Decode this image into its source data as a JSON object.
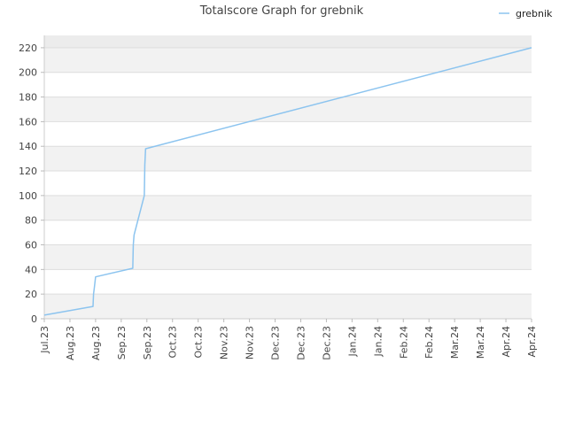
{
  "chart_data": {
    "type": "line",
    "title": "Totalscore Graph for grebnik",
    "xlabel": "",
    "ylabel": "",
    "ylim": [
      0,
      230
    ],
    "yticks": [
      0,
      20,
      40,
      60,
      80,
      100,
      120,
      140,
      160,
      180,
      200,
      220
    ],
    "xticks": [
      "Jul.23",
      "Aug.23",
      "Aug.23",
      "Sep.23",
      "Sep.23",
      "Oct.23",
      "Oct.23",
      "Nov.23",
      "Nov.23",
      "Dec.23",
      "Dec.23",
      "Dec.23",
      "Jan.24",
      "Jan.24",
      "Feb.24",
      "Feb.24",
      "Mar.24",
      "Mar.24",
      "Apr.24",
      "Apr.24"
    ],
    "xlim": [
      0,
      19
    ],
    "grid": true,
    "legend": {
      "position": "top-right"
    },
    "series": [
      {
        "name": "grebnik",
        "color": "#8cc4ef",
        "points": [
          {
            "x": 0.0,
            "y": 3
          },
          {
            "x": 1.9,
            "y": 10
          },
          {
            "x": 1.92,
            "y": 20
          },
          {
            "x": 1.95,
            "y": 25
          },
          {
            "x": 2.0,
            "y": 34
          },
          {
            "x": 3.45,
            "y": 41
          },
          {
            "x": 3.47,
            "y": 60
          },
          {
            "x": 3.5,
            "y": 68
          },
          {
            "x": 3.9,
            "y": 100
          },
          {
            "x": 3.92,
            "y": 125
          },
          {
            "x": 3.95,
            "y": 138
          },
          {
            "x": 19.0,
            "y": 220
          }
        ]
      }
    ]
  }
}
